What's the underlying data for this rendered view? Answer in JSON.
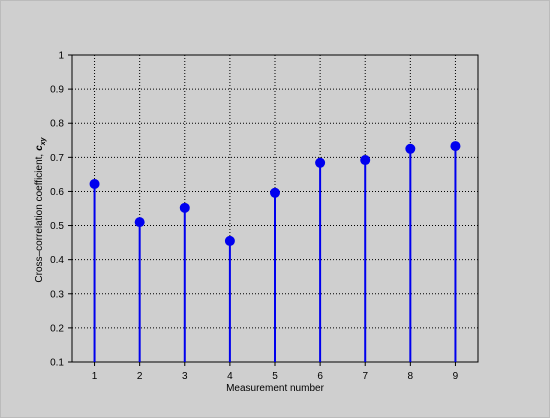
{
  "chart_data": {
    "type": "stem",
    "x_label": "Measurement number",
    "y_label": "Cross–correlation coefficient,",
    "y_label_symbol": "c",
    "y_label_subscript": "xy",
    "x": [
      1,
      2,
      3,
      4,
      5,
      6,
      7,
      8,
      9
    ],
    "values": [
      0.622,
      0.51,
      0.552,
      0.455,
      0.596,
      0.684,
      0.692,
      0.725,
      0.733
    ],
    "color": "#0000ee",
    "xlim": [
      0.5,
      9.5
    ],
    "xticks": [
      1,
      2,
      3,
      4,
      5,
      6,
      7,
      8,
      9
    ],
    "ylim": [
      0.1,
      1
    ],
    "yticks": [
      0.1,
      0.2,
      0.3,
      0.4,
      0.5,
      0.6,
      0.7,
      0.8,
      0.9,
      1
    ],
    "grid": true
  }
}
